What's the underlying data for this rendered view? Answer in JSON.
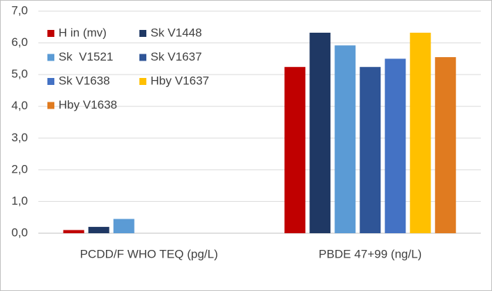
{
  "chart_data": {
    "type": "bar",
    "categories": [
      "PCDD/F WHO TEQ (pg/L)",
      "PBDE 47+99 (ng/L)"
    ],
    "series": [
      {
        "name": "H in (mv)",
        "color": "#c00000",
        "values": [
          0.1,
          5.24
        ]
      },
      {
        "name": "Sk V1448",
        "color": "#1f3864",
        "values": [
          0.2,
          6.32
        ]
      },
      {
        "name": "Sk  V1521",
        "color": "#5b9bd5",
        "values": [
          0.45,
          5.92
        ]
      },
      {
        "name": "Sk V1637",
        "color": "#2f5597",
        "values": [
          null,
          5.24
        ]
      },
      {
        "name": "Sk V1638",
        "color": "#4472c4",
        "values": [
          null,
          5.5
        ]
      },
      {
        "name": "Hby V1637",
        "color": "#ffc000",
        "values": [
          null,
          6.32
        ]
      },
      {
        "name": "Hby V1638",
        "color": "#e07b20",
        "values": [
          null,
          5.55
        ]
      }
    ],
    "ylim": [
      0,
      7
    ],
    "yticks": [
      {
        "value": 0,
        "label": "0,0"
      },
      {
        "value": 1,
        "label": "1,0"
      },
      {
        "value": 2,
        "label": "2,0"
      },
      {
        "value": 3,
        "label": "3,0"
      },
      {
        "value": 4,
        "label": "4,0"
      },
      {
        "value": 5,
        "label": "5,0"
      },
      {
        "value": 6,
        "label": "6,0"
      },
      {
        "value": 7,
        "label": "7,0"
      }
    ],
    "grid": true,
    "legend": "upper-left"
  }
}
